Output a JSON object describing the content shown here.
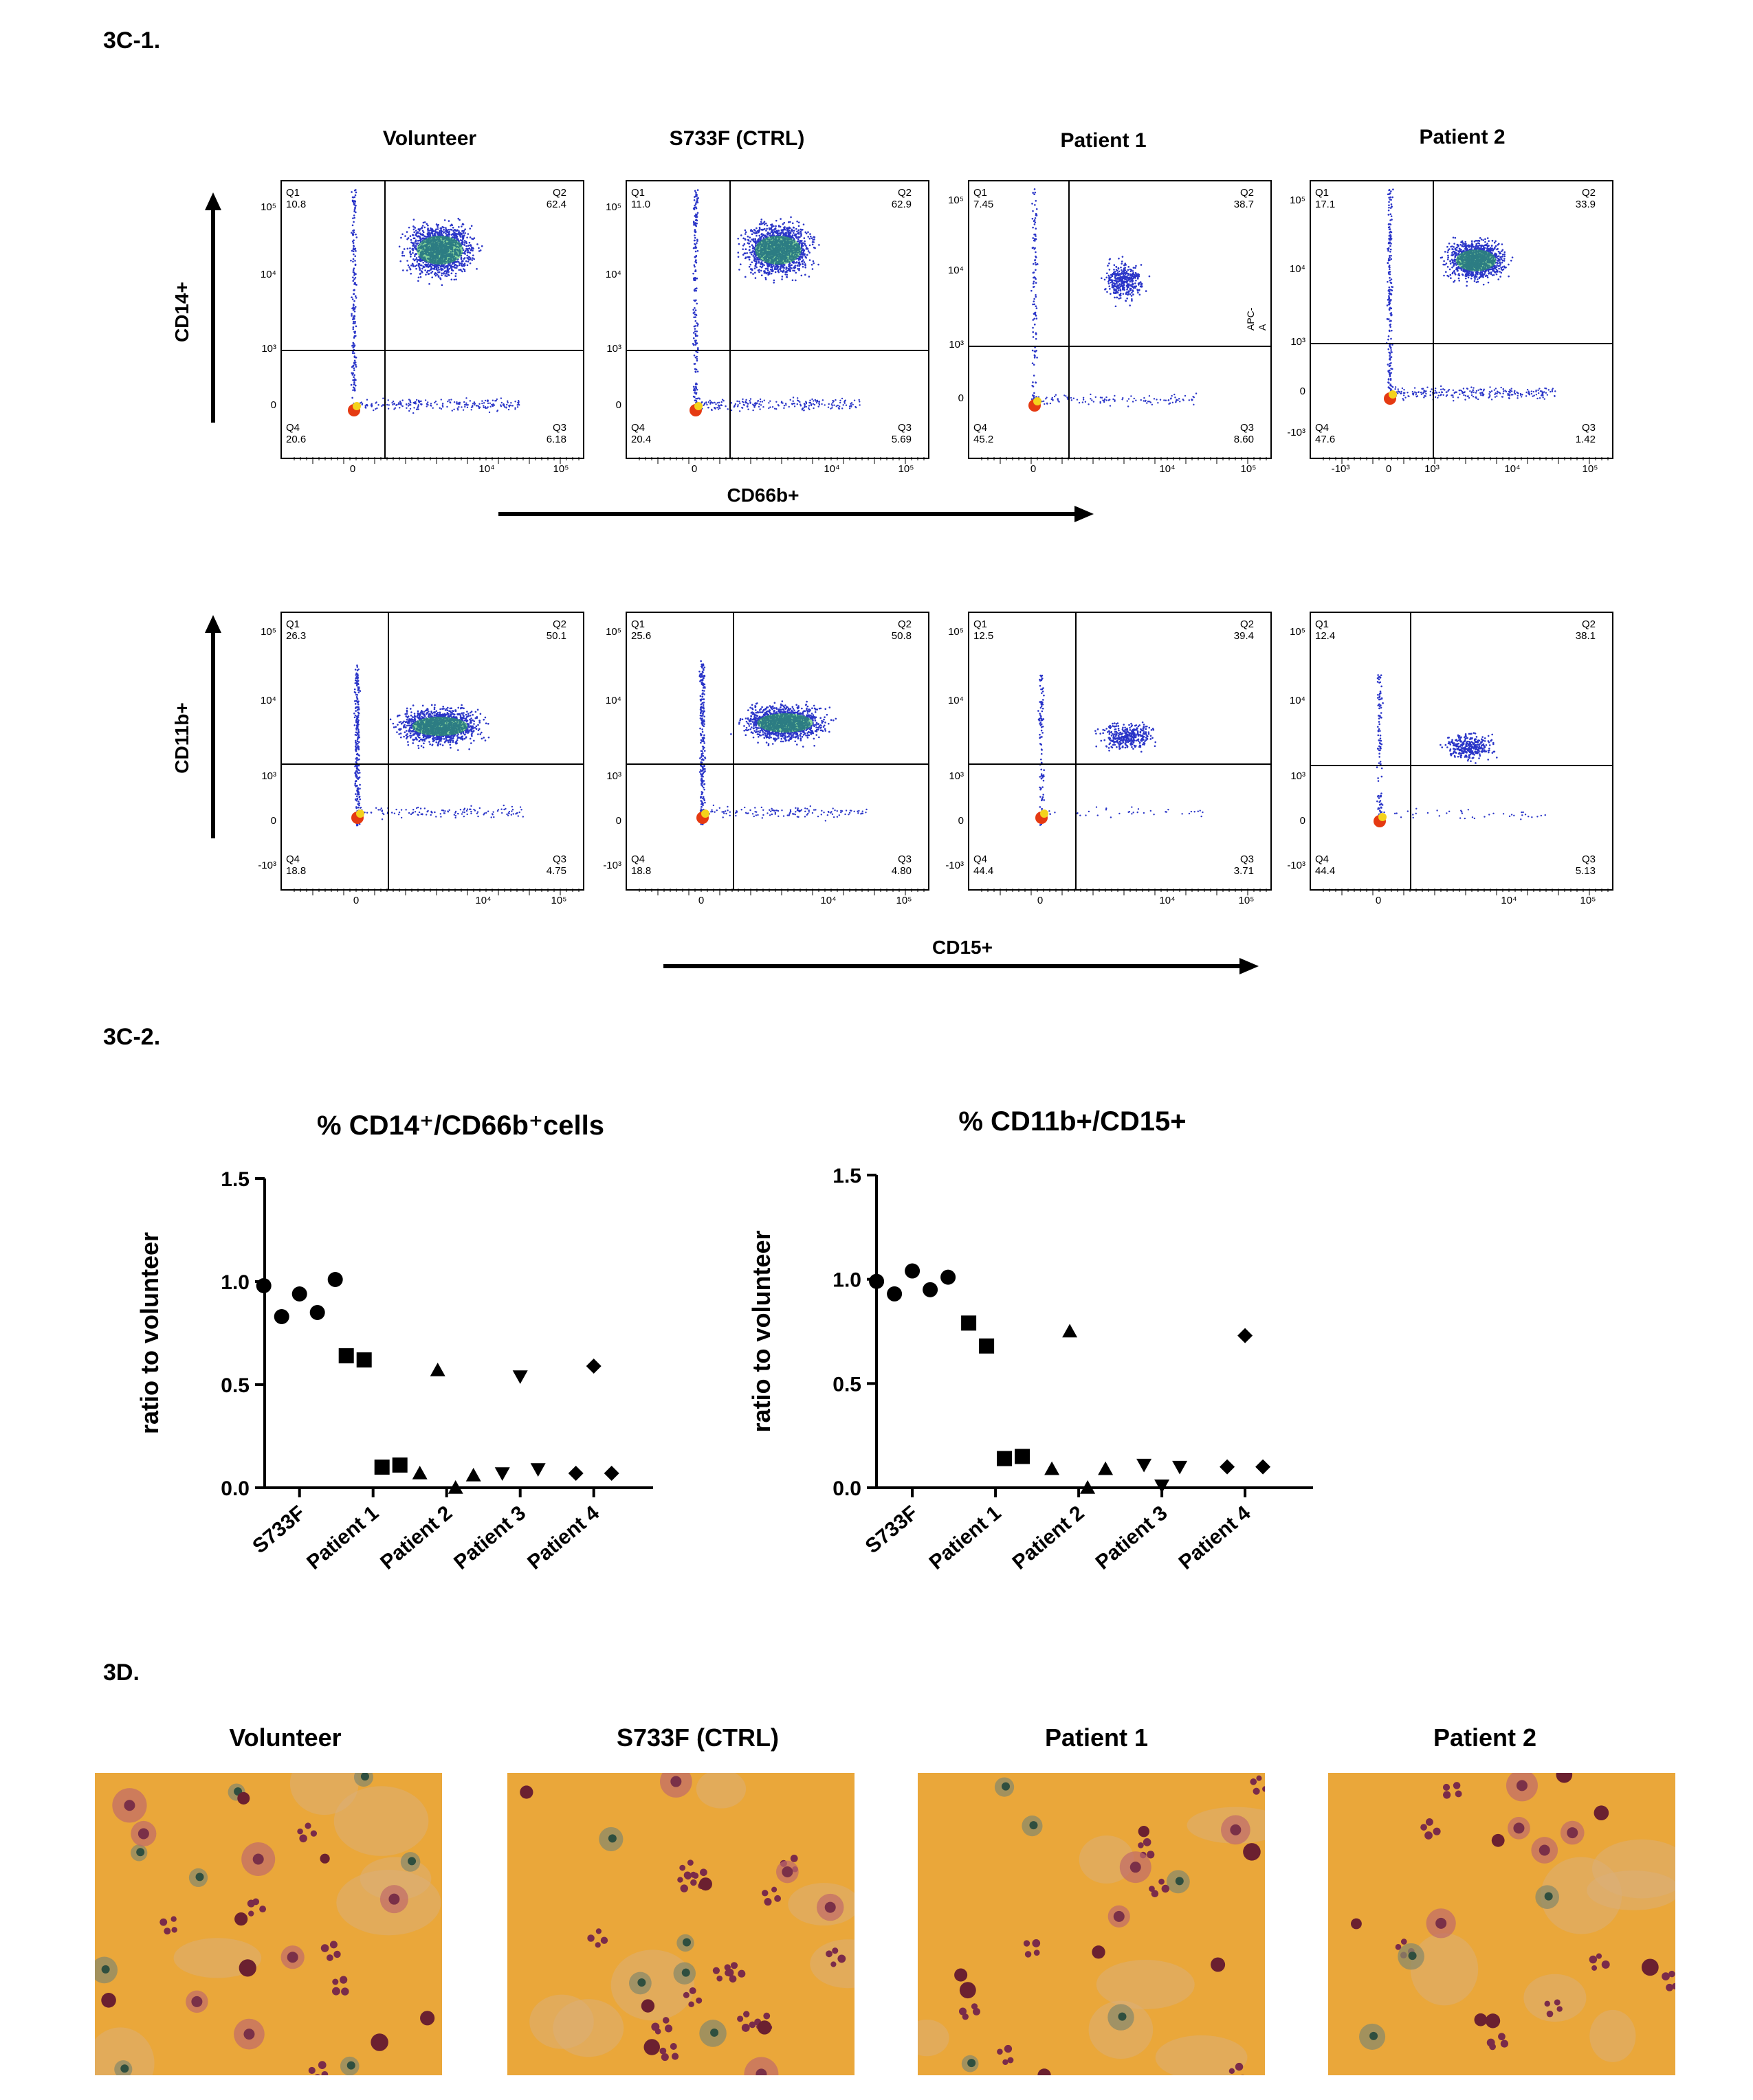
{
  "sections": {
    "c1": "3C-1.",
    "c2": "3C-2.",
    "d": "3D."
  },
  "columns": [
    "Volunteer",
    "S733F (CTRL)",
    "Patient 1",
    "Patient 2"
  ],
  "flow": {
    "row1": {
      "y_label": "CD14+",
      "x_label": "CD66b+",
      "apc_label": "APC-A",
      "panels": [
        {
          "q1": "10.8",
          "q2": "62.4",
          "q3": "6.18",
          "q4": "20.6"
        },
        {
          "q1": "11.0",
          "q2": "62.9",
          "q3": "5.69",
          "q4": "20.4"
        },
        {
          "q1": "7.45",
          "q2": "38.7",
          "q3": "8.60",
          "q4": "45.2"
        },
        {
          "q1": "17.1",
          "q2": "33.9",
          "q3": "1.42",
          "q4": "47.6"
        }
      ]
    },
    "row2": {
      "y_label": "CD11b+",
      "x_label": "CD15+",
      "panels": [
        {
          "q1": "26.3",
          "q2": "50.1",
          "q3": "4.75",
          "q4": "18.8"
        },
        {
          "q1": "25.6",
          "q2": "50.8",
          "q3": "4.80",
          "q4": "18.8"
        },
        {
          "q1": "12.5",
          "q2": "39.4",
          "q3": "3.71",
          "q4": "44.4"
        },
        {
          "q1": "12.4",
          "q2": "38.1",
          "q3": "5.13",
          "q4": "44.4"
        }
      ]
    },
    "quadrant_names": [
      "Q1",
      "Q2",
      "Q3",
      "Q4"
    ],
    "ticks": {
      "e5": "10⁵",
      "e4": "10⁴",
      "e3": "10³",
      "zero": "0",
      "neg3": "-10³"
    }
  },
  "chart_data": [
    {
      "type": "scatter",
      "title": "% CD14⁺/CD66b⁺cells",
      "ylabel": "ratio to volunteer",
      "xlabel": "",
      "categories": [
        "S733F",
        "Patient 1",
        "Patient 2",
        "Patient 3",
        "Patient 4"
      ],
      "ylim": [
        0,
        1.5
      ],
      "yticks": [
        "0.0",
        "0.5",
        "1.0",
        "1.5"
      ],
      "series": [
        {
          "marker": "circle",
          "values": [
            0.98,
            0.83,
            0.94,
            0.85,
            1.01
          ]
        },
        {
          "marker": "square",
          "values": [
            0.64,
            0.62,
            0.1,
            0.11
          ]
        },
        {
          "marker": "triangle-up",
          "values": [
            0.07,
            0.57,
            0.0,
            0.06
          ]
        },
        {
          "marker": "triangle-down",
          "values": [
            0.07,
            0.54,
            0.09
          ]
        },
        {
          "marker": "diamond",
          "values": [
            0.07,
            0.59,
            0.07
          ]
        }
      ]
    },
    {
      "type": "scatter",
      "title": "% CD11b+/CD15+",
      "ylabel": "ratio to volunteer",
      "xlabel": "",
      "categories": [
        "S733F",
        "Patient 1",
        "Patient 2",
        "Patient 3",
        "Patient 4"
      ],
      "ylim": [
        0,
        1.5
      ],
      "yticks": [
        "0.0",
        "0.5",
        "1.0",
        "1.5"
      ],
      "series": [
        {
          "marker": "circle",
          "values": [
            0.99,
            0.93,
            1.04,
            0.95,
            1.01
          ]
        },
        {
          "marker": "square",
          "values": [
            0.79,
            0.68,
            0.14,
            0.15
          ]
        },
        {
          "marker": "triangle-up",
          "values": [
            0.09,
            0.75,
            0.0,
            0.09
          ]
        },
        {
          "marker": "triangle-down",
          "values": [
            0.11,
            0.01,
            0.1
          ]
        },
        {
          "marker": "diamond",
          "values": [
            0.1,
            0.73,
            0.1
          ]
        }
      ]
    }
  ],
  "photos": [
    "Volunteer",
    "S733F (CTRL)",
    "Patient 1",
    "Patient 2"
  ],
  "colors": {
    "photo_bg": "#eaa73a",
    "dots": "#2233cc"
  }
}
